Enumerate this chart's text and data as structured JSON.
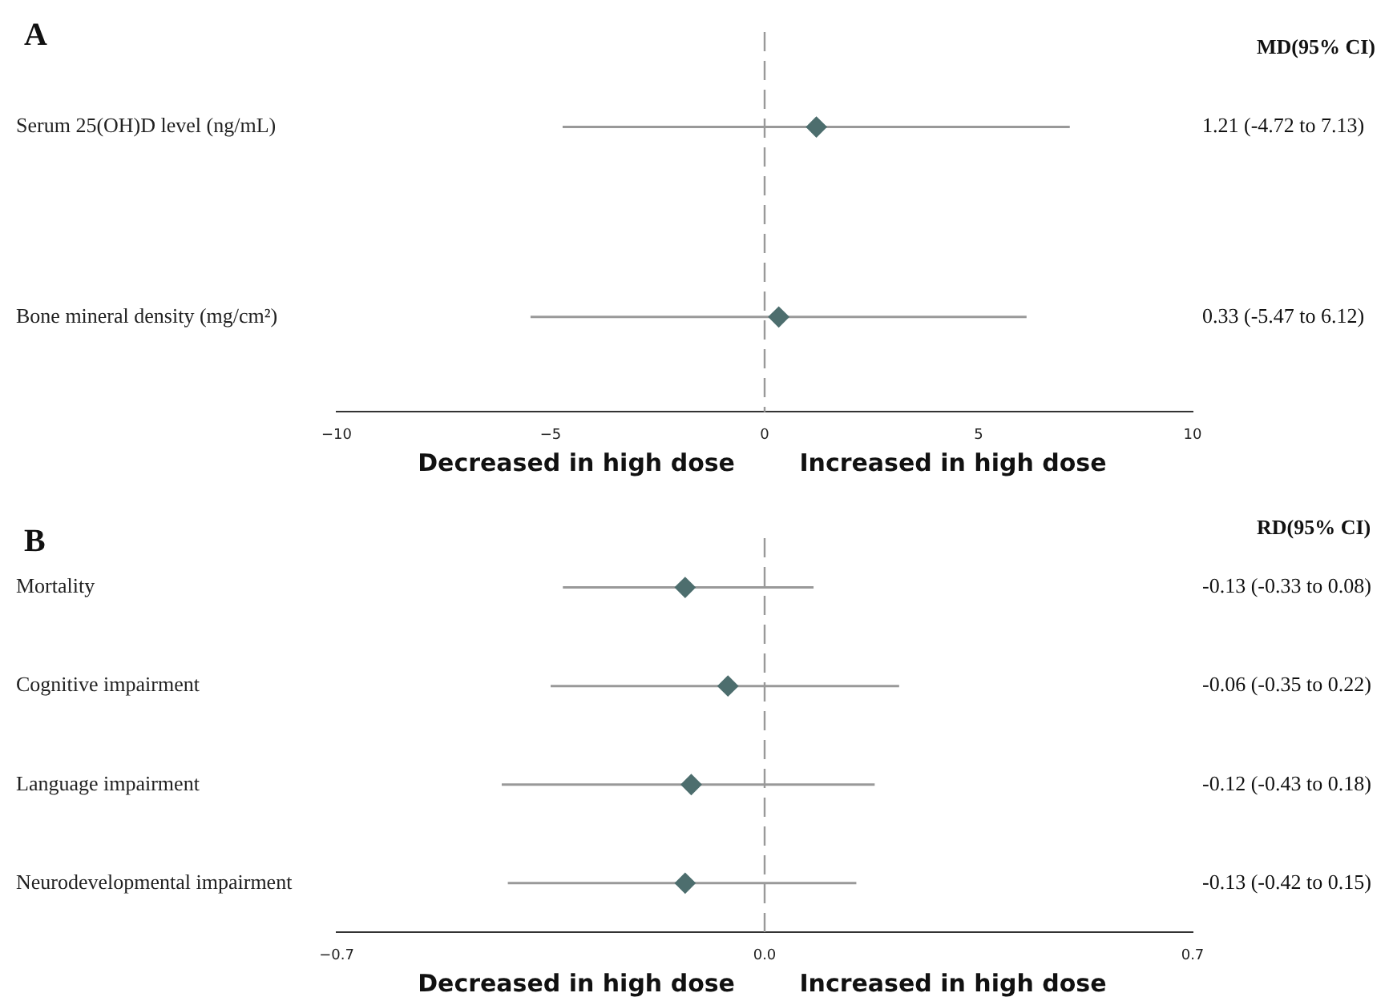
{
  "chart_data": [
    {
      "type": "scatter",
      "title": "A",
      "orientation": "horizontal",
      "categories": [
        "Serum 25(OH)D level (ng/mL)",
        "Bone mineral density (mg/cm²)"
      ],
      "values": [
        1.21,
        0.33
      ],
      "errors": [
        [
          -4.72,
          7.13
        ],
        [
          -5.47,
          6.12
        ]
      ],
      "value_labels": [
        "1.21 (-4.72 to 7.13)",
        "0.33 (-5.47 to 6.12)"
      ],
      "color": "#4d6e6e",
      "marker": "diamond",
      "xlim": [
        -10,
        10
      ],
      "xticks": [
        {
          "value": -10,
          "label": "−10"
        },
        {
          "value": -5,
          "label": "−5"
        },
        0,
        5,
        10
      ],
      "ref_lines": [
        {
          "axis": "x",
          "value": 0,
          "line_style": "dashed",
          "color": "#999999"
        }
      ],
      "annotations": [
        "MD(95% CI)",
        "Decreased in high dose",
        "Increased in high dose"
      ]
    },
    {
      "type": "scatter",
      "title": "B",
      "orientation": "horizontal",
      "categories": [
        "Mortality",
        "Cognitive impairment",
        "Language impairment",
        "Neurodevelopmental impairment"
      ],
      "values": [
        -0.13,
        -0.06,
        -0.12,
        -0.13
      ],
      "errors": [
        [
          -0.33,
          0.08
        ],
        [
          -0.35,
          0.22
        ],
        [
          -0.43,
          0.18
        ],
        [
          -0.42,
          0.15
        ]
      ],
      "value_labels": [
        "-0.13 (-0.33 to 0.08)",
        "-0.06 (-0.35 to 0.22)",
        "-0.12 (-0.43 to 0.18)",
        "-0.13 (-0.42 to 0.15)"
      ],
      "color": "#4d6e6e",
      "marker": "diamond",
      "xlim": [
        -0.7,
        0.7
      ],
      "xticks": [
        {
          "value": -0.7,
          "label": "−0.7"
        },
        {
          "value": 0,
          "label": "0.0"
        },
        {
          "value": 0.7,
          "label": "0.7"
        }
      ],
      "ref_lines": [
        {
          "axis": "x",
          "value": 0,
          "line_style": "dashed",
          "color": "#999999"
        }
      ],
      "annotations": [
        "RD(95% CI)",
        "Decreased in high dose",
        "Increased in high dose"
      ]
    }
  ]
}
